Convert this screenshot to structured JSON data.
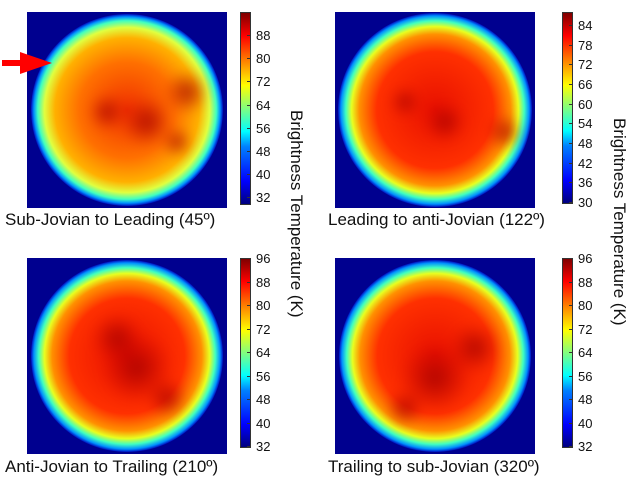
{
  "chart_data": {
    "type": "heatmap",
    "colorbar_label": "Brightness Temperature (K)",
    "colormap": "jet",
    "panels": [
      {
        "title": "Sub-Jovian to Leading (45º)",
        "ticks": [
          32,
          40,
          48,
          56,
          64,
          72,
          80,
          88
        ],
        "range": [
          30,
          96
        ]
      },
      {
        "title": "Leading to anti-Jovian (122º)",
        "ticks": [
          30,
          36,
          42,
          48,
          54,
          60,
          66,
          72,
          78,
          84
        ],
        "range": [
          30,
          88
        ]
      },
      {
        "title": "Anti-Jovian to Trailing (210º)",
        "ticks": [
          32,
          40,
          48,
          56,
          64,
          72,
          80,
          88,
          96
        ],
        "range": [
          32,
          96
        ]
      },
      {
        "title": "Trailing to sub-Jovian (320º)",
        "ticks": [
          32,
          40,
          48,
          56,
          64,
          72,
          80,
          88,
          96
        ],
        "range": [
          32,
          96
        ]
      }
    ]
  },
  "annotations": {
    "arrow_color": "#ff0000"
  }
}
